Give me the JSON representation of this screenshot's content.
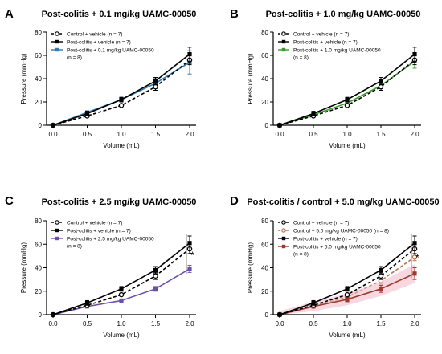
{
  "chart_data": [
    {
      "type": "line",
      "panel_letter": "A",
      "title": "Post-colitis + 0.1 mg/kg UAMC-00050",
      "xlabel": "Volume (mL)",
      "ylabel": "Pressure (mmHg)",
      "xlim": [
        0,
        2
      ],
      "ylim": [
        0,
        80
      ],
      "x_ticks": [
        "0.0",
        "0.5",
        "1.0",
        "1.5",
        "2.0"
      ],
      "y_ticks": [
        "0",
        "20",
        "40",
        "60",
        "80"
      ],
      "x": [
        0,
        0.5,
        1.0,
        1.5,
        2.0
      ],
      "legend_position": "top-left",
      "significance": "",
      "series": [
        {
          "name": "Control + vehicle (n = 7)",
          "legend_lines": [
            "Control + vehicle (n = 7)"
          ],
          "values": [
            0,
            8,
            17,
            33,
            56
          ],
          "errors": [
            0,
            1,
            1,
            3,
            4
          ],
          "color": "#000000",
          "dashed": true,
          "marker": "open-circle"
        },
        {
          "name": "Post-colitis + vehicle (n = 7)",
          "legend_lines": [
            "Post-colitis + vehicle (n = 7)"
          ],
          "values": [
            0,
            10,
            22,
            38,
            61
          ],
          "errors": [
            0,
            2,
            2,
            3,
            6
          ],
          "color": "#000000",
          "dashed": false,
          "marker": "filled-square"
        },
        {
          "name": "Post-colitis + 0.1 mg/kg UAMC-00050 (n = 8)",
          "legend_lines": [
            "Post-colitis + 0.1 mg/kg UAMC-00050",
            "(n = 8)"
          ],
          "values": [
            0,
            11,
            22,
            36,
            54
          ],
          "errors": [
            0,
            1,
            2,
            4,
            10
          ],
          "color": "#2e7bb0",
          "dashed": false,
          "marker": "filled-square"
        }
      ]
    },
    {
      "type": "line",
      "panel_letter": "B",
      "title": "Post-colitis + 1.0 mg/kg UAMC-00050",
      "xlabel": "Volume (mL)",
      "ylabel": "Pressure (mmHg)",
      "xlim": [
        0,
        2
      ],
      "ylim": [
        0,
        80
      ],
      "x_ticks": [
        "0.0",
        "0.5",
        "1.0",
        "1.5",
        "2.0"
      ],
      "y_ticks": [
        "0",
        "20",
        "40",
        "60",
        "80"
      ],
      "x": [
        0,
        0.5,
        1.0,
        1.5,
        2.0
      ],
      "legend_position": "top-left",
      "significance": "",
      "series": [
        {
          "name": "Control + vehicle (n = 7)",
          "legend_lines": [
            "Control + vehicle (n = 7)"
          ],
          "values": [
            0,
            8,
            17,
            33,
            56
          ],
          "errors": [
            0,
            1,
            1,
            3,
            4
          ],
          "color": "#000000",
          "dashed": true,
          "marker": "open-circle"
        },
        {
          "name": "Post-colitis + vehicle (n = 7)",
          "legend_lines": [
            "Post-colitis + vehicle (n = 7)"
          ],
          "values": [
            0,
            10,
            22,
            38,
            61
          ],
          "errors": [
            0,
            2,
            2,
            3,
            6
          ],
          "color": "#000000",
          "dashed": false,
          "marker": "filled-square"
        },
        {
          "name": "Post-colitis + 1.0 mg/kg UAMC-00050 (n = 8)",
          "legend_lines": [
            "Post-colitis + 1.0 mg/kg UAMC-00050",
            "(n = 8)"
          ],
          "values": [
            0,
            9,
            19,
            34,
            55
          ],
          "errors": [
            0,
            1,
            2,
            4,
            6
          ],
          "color": "#3a9a2e",
          "dashed": false,
          "marker": "filled-square"
        }
      ]
    },
    {
      "type": "line",
      "panel_letter": "C",
      "title": "Post-colitis + 2.5 mg/kg UAMC-00050",
      "xlabel": "Volume (mL)",
      "ylabel": "Pressure (mmHg)",
      "xlim": [
        0,
        2
      ],
      "ylim": [
        0,
        80
      ],
      "x_ticks": [
        "0.0",
        "0.5",
        "1.0",
        "1.5",
        "2.0"
      ],
      "y_ticks": [
        "0",
        "20",
        "40",
        "60",
        "80"
      ],
      "x": [
        0,
        0.5,
        1.0,
        1.5,
        2.0
      ],
      "legend_position": "top-left",
      "significance": "*",
      "series": [
        {
          "name": "Control + vehicle (n = 7)",
          "legend_lines": [
            "Control + vehicle (n = 7)"
          ],
          "values": [
            0,
            8,
            17,
            33,
            56
          ],
          "errors": [
            0,
            1,
            1,
            3,
            4
          ],
          "color": "#000000",
          "dashed": true,
          "marker": "open-circle"
        },
        {
          "name": "Post-colitis + vehicle (n = 7)",
          "legend_lines": [
            "Post-colitis + vehicle (n = 7)"
          ],
          "values": [
            0,
            10,
            22,
            38,
            61
          ],
          "errors": [
            0,
            2,
            2,
            3,
            6
          ],
          "color": "#000000",
          "dashed": false,
          "marker": "filled-square"
        },
        {
          "name": "Post-colitis + 2.5 mg/kg UAMC-00050 (n = 8)",
          "legend_lines": [
            "Post-colitis + 2.5 mg/kg UAMC-00050",
            "(n = 8)"
          ],
          "values": [
            0,
            7,
            12,
            22,
            39
          ],
          "errors": [
            0,
            1,
            1,
            2,
            3
          ],
          "color": "#6b4fa8",
          "dashed": false,
          "marker": "filled-square"
        }
      ]
    },
    {
      "type": "line",
      "panel_letter": "D",
      "title": "Post-colitis / control + 5.0 mg/kg UAMC-00050",
      "xlabel": "Volume (mL)",
      "ylabel": "Pressure (mmHg)",
      "xlim": [
        0,
        2
      ],
      "ylim": [
        0,
        80
      ],
      "x_ticks": [
        "0.0",
        "0.5",
        "1.0",
        "1.5",
        "2.0"
      ],
      "y_ticks": [
        "0",
        "20",
        "40",
        "60",
        "80"
      ],
      "x": [
        0,
        0.5,
        1.0,
        1.5,
        2.0
      ],
      "legend_position": "top-left",
      "significance": "*",
      "series": [
        {
          "name": "Control + vehicle (n = 7)",
          "legend_lines": [
            "Control + vehicle (n = 7)"
          ],
          "values": [
            0,
            8,
            17,
            33,
            56
          ],
          "errors": [
            0,
            1,
            1,
            3,
            4
          ],
          "color": "#000000",
          "dashed": true,
          "marker": "open-circle"
        },
        {
          "name": "Control + 5.0 mg/kg UAMC-00050 (n = 8)",
          "legend_lines": [
            "Control + 5.0 mg/kg UAMC-00050 (n = 8)"
          ],
          "values": [
            0,
            7,
            15,
            29,
            49
          ],
          "errors": [
            0,
            1,
            2,
            3,
            3
          ],
          "color": "#b87350",
          "dashed": true,
          "marker": "open-circle"
        },
        {
          "name": "Post-colitis + vehicle (n = 7)",
          "legend_lines": [
            "Post-colitis + vehicle (n = 7)"
          ],
          "values": [
            0,
            10,
            22,
            38,
            61
          ],
          "errors": [
            0,
            2,
            2,
            3,
            6
          ],
          "color": "#000000",
          "dashed": false,
          "marker": "filled-square"
        },
        {
          "name": "Post-colitis + 5.0 mg/kg UAMC-00050 (n = 8)",
          "legend_lines": [
            "Post-colitis + 5.0 mg/kg UAMC-00050",
            "(n = 8)"
          ],
          "values": [
            0,
            7,
            13,
            22,
            35
          ],
          "errors": [
            0,
            1,
            2,
            3,
            5
          ],
          "color": "#9b3a2a",
          "dashed": false,
          "marker": "filled-square",
          "shaded_error": true
        }
      ]
    }
  ]
}
